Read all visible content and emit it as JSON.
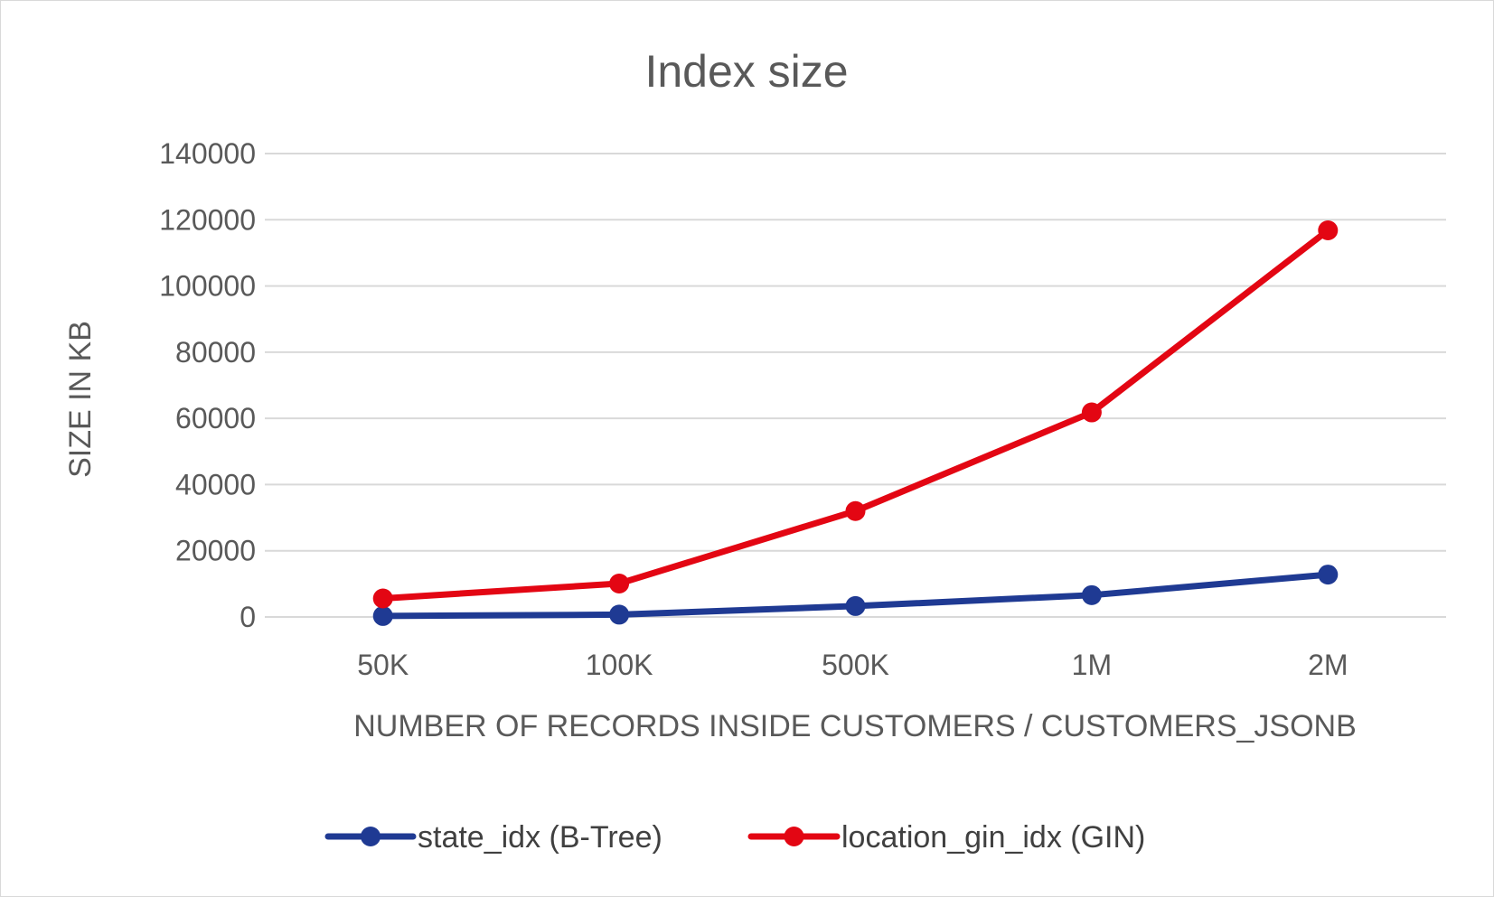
{
  "chart_data": {
    "type": "line",
    "title": "Index size",
    "xlabel": "NUMBER OF RECORDS INSIDE CUSTOMERS / CUSTOMERS_JSONB",
    "ylabel": "SIZE IN KB",
    "categories": [
      "50K",
      "100K",
      "500K",
      "1M",
      "2M"
    ],
    "ylim": [
      0,
      140000
    ],
    "yticks": [
      0,
      20000,
      40000,
      60000,
      80000,
      100000,
      120000,
      140000
    ],
    "ytick_labels": [
      "0",
      "20000",
      "40000",
      "60000",
      "80000",
      "100000",
      "120000",
      "140000"
    ],
    "grid": true,
    "legend_position": "bottom",
    "series": [
      {
        "name": "state_idx (B-Tree)",
        "color": "#1f3a93",
        "values": [
          300,
          700,
          3300,
          6600,
          12800
        ]
      },
      {
        "name": "location_gin_idx (GIN)",
        "color": "#e30613",
        "values": [
          5600,
          10100,
          32000,
          61800,
          116800
        ]
      }
    ]
  }
}
